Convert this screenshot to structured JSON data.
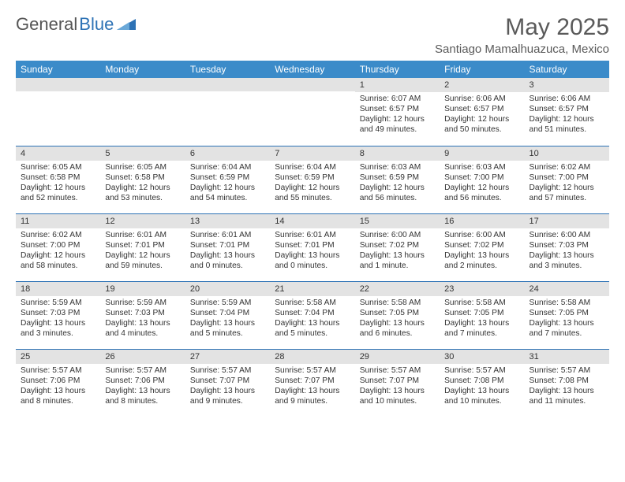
{
  "brand": {
    "part1": "General",
    "part2": "Blue"
  },
  "header": {
    "month_title": "May 2025",
    "location": "Santiago Mamalhuazuca, Mexico"
  },
  "colors": {
    "header_bg": "#3b8bc9",
    "week_sep": "#2d72b5",
    "daynum_bg": "#e3e3e3",
    "text": "#333333",
    "logo_gray": "#555555",
    "logo_blue": "#2d72b5"
  },
  "weekdays": [
    "Sunday",
    "Monday",
    "Tuesday",
    "Wednesday",
    "Thursday",
    "Friday",
    "Saturday"
  ],
  "weeks": [
    [
      {
        "day": "",
        "lines": []
      },
      {
        "day": "",
        "lines": []
      },
      {
        "day": "",
        "lines": []
      },
      {
        "day": "",
        "lines": []
      },
      {
        "day": "1",
        "lines": [
          "Sunrise: 6:07 AM",
          "Sunset: 6:57 PM",
          "Daylight: 12 hours",
          "and 49 minutes."
        ]
      },
      {
        "day": "2",
        "lines": [
          "Sunrise: 6:06 AM",
          "Sunset: 6:57 PM",
          "Daylight: 12 hours",
          "and 50 minutes."
        ]
      },
      {
        "day": "3",
        "lines": [
          "Sunrise: 6:06 AM",
          "Sunset: 6:57 PM",
          "Daylight: 12 hours",
          "and 51 minutes."
        ]
      }
    ],
    [
      {
        "day": "4",
        "lines": [
          "Sunrise: 6:05 AM",
          "Sunset: 6:58 PM",
          "Daylight: 12 hours",
          "and 52 minutes."
        ]
      },
      {
        "day": "5",
        "lines": [
          "Sunrise: 6:05 AM",
          "Sunset: 6:58 PM",
          "Daylight: 12 hours",
          "and 53 minutes."
        ]
      },
      {
        "day": "6",
        "lines": [
          "Sunrise: 6:04 AM",
          "Sunset: 6:59 PM",
          "Daylight: 12 hours",
          "and 54 minutes."
        ]
      },
      {
        "day": "7",
        "lines": [
          "Sunrise: 6:04 AM",
          "Sunset: 6:59 PM",
          "Daylight: 12 hours",
          "and 55 minutes."
        ]
      },
      {
        "day": "8",
        "lines": [
          "Sunrise: 6:03 AM",
          "Sunset: 6:59 PM",
          "Daylight: 12 hours",
          "and 56 minutes."
        ]
      },
      {
        "day": "9",
        "lines": [
          "Sunrise: 6:03 AM",
          "Sunset: 7:00 PM",
          "Daylight: 12 hours",
          "and 56 minutes."
        ]
      },
      {
        "day": "10",
        "lines": [
          "Sunrise: 6:02 AM",
          "Sunset: 7:00 PM",
          "Daylight: 12 hours",
          "and 57 minutes."
        ]
      }
    ],
    [
      {
        "day": "11",
        "lines": [
          "Sunrise: 6:02 AM",
          "Sunset: 7:00 PM",
          "Daylight: 12 hours",
          "and 58 minutes."
        ]
      },
      {
        "day": "12",
        "lines": [
          "Sunrise: 6:01 AM",
          "Sunset: 7:01 PM",
          "Daylight: 12 hours",
          "and 59 minutes."
        ]
      },
      {
        "day": "13",
        "lines": [
          "Sunrise: 6:01 AM",
          "Sunset: 7:01 PM",
          "Daylight: 13 hours",
          "and 0 minutes."
        ]
      },
      {
        "day": "14",
        "lines": [
          "Sunrise: 6:01 AM",
          "Sunset: 7:01 PM",
          "Daylight: 13 hours",
          "and 0 minutes."
        ]
      },
      {
        "day": "15",
        "lines": [
          "Sunrise: 6:00 AM",
          "Sunset: 7:02 PM",
          "Daylight: 13 hours",
          "and 1 minute."
        ]
      },
      {
        "day": "16",
        "lines": [
          "Sunrise: 6:00 AM",
          "Sunset: 7:02 PM",
          "Daylight: 13 hours",
          "and 2 minutes."
        ]
      },
      {
        "day": "17",
        "lines": [
          "Sunrise: 6:00 AM",
          "Sunset: 7:03 PM",
          "Daylight: 13 hours",
          "and 3 minutes."
        ]
      }
    ],
    [
      {
        "day": "18",
        "lines": [
          "Sunrise: 5:59 AM",
          "Sunset: 7:03 PM",
          "Daylight: 13 hours",
          "and 3 minutes."
        ]
      },
      {
        "day": "19",
        "lines": [
          "Sunrise: 5:59 AM",
          "Sunset: 7:03 PM",
          "Daylight: 13 hours",
          "and 4 minutes."
        ]
      },
      {
        "day": "20",
        "lines": [
          "Sunrise: 5:59 AM",
          "Sunset: 7:04 PM",
          "Daylight: 13 hours",
          "and 5 minutes."
        ]
      },
      {
        "day": "21",
        "lines": [
          "Sunrise: 5:58 AM",
          "Sunset: 7:04 PM",
          "Daylight: 13 hours",
          "and 5 minutes."
        ]
      },
      {
        "day": "22",
        "lines": [
          "Sunrise: 5:58 AM",
          "Sunset: 7:05 PM",
          "Daylight: 13 hours",
          "and 6 minutes."
        ]
      },
      {
        "day": "23",
        "lines": [
          "Sunrise: 5:58 AM",
          "Sunset: 7:05 PM",
          "Daylight: 13 hours",
          "and 7 minutes."
        ]
      },
      {
        "day": "24",
        "lines": [
          "Sunrise: 5:58 AM",
          "Sunset: 7:05 PM",
          "Daylight: 13 hours",
          "and 7 minutes."
        ]
      }
    ],
    [
      {
        "day": "25",
        "lines": [
          "Sunrise: 5:57 AM",
          "Sunset: 7:06 PM",
          "Daylight: 13 hours",
          "and 8 minutes."
        ]
      },
      {
        "day": "26",
        "lines": [
          "Sunrise: 5:57 AM",
          "Sunset: 7:06 PM",
          "Daylight: 13 hours",
          "and 8 minutes."
        ]
      },
      {
        "day": "27",
        "lines": [
          "Sunrise: 5:57 AM",
          "Sunset: 7:07 PM",
          "Daylight: 13 hours",
          "and 9 minutes."
        ]
      },
      {
        "day": "28",
        "lines": [
          "Sunrise: 5:57 AM",
          "Sunset: 7:07 PM",
          "Daylight: 13 hours",
          "and 9 minutes."
        ]
      },
      {
        "day": "29",
        "lines": [
          "Sunrise: 5:57 AM",
          "Sunset: 7:07 PM",
          "Daylight: 13 hours",
          "and 10 minutes."
        ]
      },
      {
        "day": "30",
        "lines": [
          "Sunrise: 5:57 AM",
          "Sunset: 7:08 PM",
          "Daylight: 13 hours",
          "and 10 minutes."
        ]
      },
      {
        "day": "31",
        "lines": [
          "Sunrise: 5:57 AM",
          "Sunset: 7:08 PM",
          "Daylight: 13 hours",
          "and 11 minutes."
        ]
      }
    ]
  ]
}
